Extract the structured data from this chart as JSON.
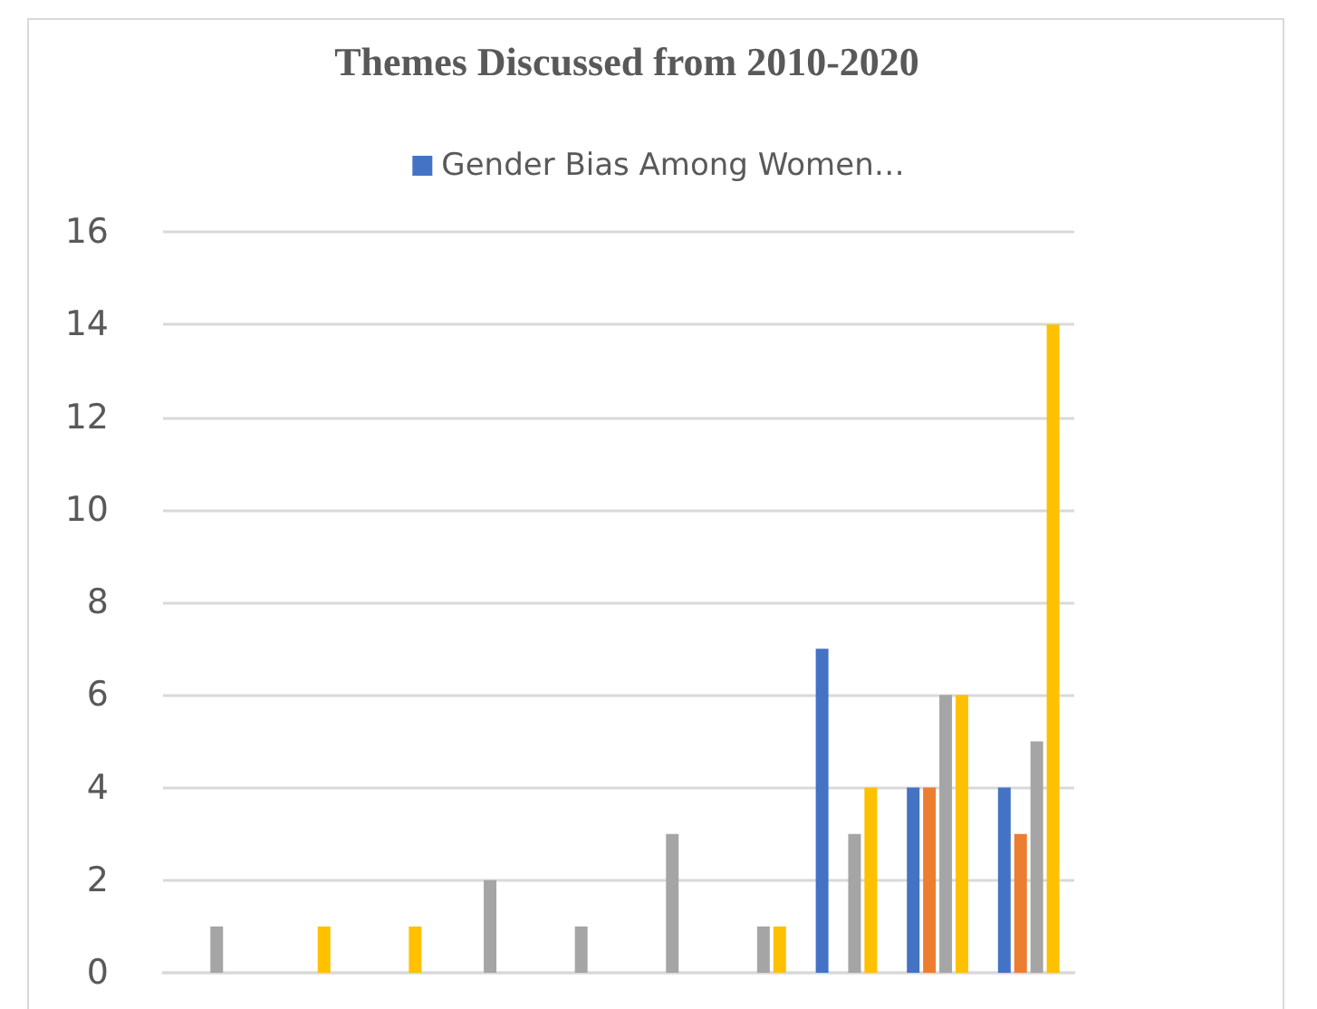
{
  "chart_data": {
    "type": "bar",
    "title": "Themes Discussed from 2010-2020",
    "categories": [
      null,
      null,
      null,
      null,
      null,
      null,
      null,
      null,
      null,
      null
    ],
    "series": [
      {
        "name": "Gender Bias Among Women…",
        "color": "#4472c4",
        "values": [
          0,
          0,
          0,
          0,
          0,
          0,
          0,
          7,
          4,
          4
        ]
      },
      {
        "color": "#ed7d31",
        "values": [
          0,
          0,
          0,
          0,
          0,
          0,
          0,
          0,
          4,
          3
        ]
      },
      {
        "color": "#a5a5a5",
        "values": [
          1,
          0,
          0,
          2,
          1,
          3,
          1,
          3,
          6,
          5
        ]
      },
      {
        "color": "#ffc000",
        "values": [
          0,
          1,
          1,
          0,
          0,
          0,
          1,
          4,
          6,
          14
        ]
      }
    ],
    "ylim": [
      0,
      16
    ],
    "yticks": [
      0,
      2,
      4,
      6,
      8,
      10,
      12,
      14,
      16
    ],
    "grid": "y",
    "legend": "top"
  }
}
